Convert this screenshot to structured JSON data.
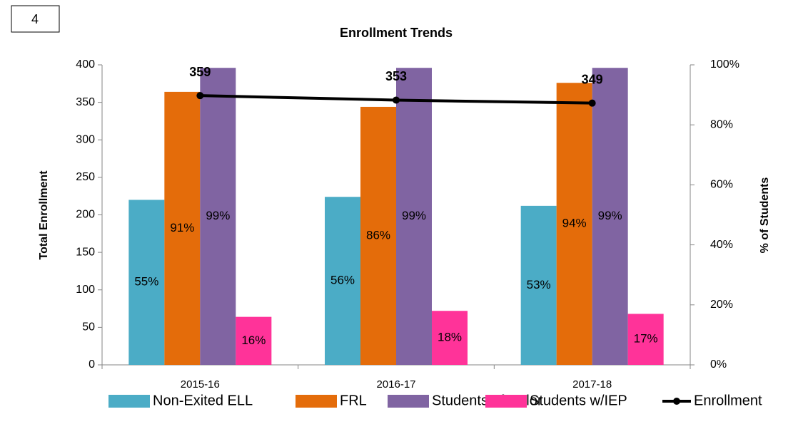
{
  "annotation": "4",
  "chart_data": {
    "type": "bar",
    "title": "Enrollment Trends",
    "y_label": "Total Enrollment",
    "y2_label": "% of Students",
    "categories": [
      "2015-16",
      "2016-17",
      "2017-18"
    ],
    "ylim": [
      0,
      400
    ],
    "yticks": [
      0,
      50,
      100,
      150,
      200,
      250,
      300,
      350,
      400
    ],
    "y2lim": [
      0,
      100
    ],
    "y2ticks": [
      {
        "value": 0,
        "label": "0%"
      },
      {
        "value": 20,
        "label": "20%"
      },
      {
        "value": 40,
        "label": "40%"
      },
      {
        "value": 60,
        "label": "60%"
      },
      {
        "value": 80,
        "label": "80%"
      },
      {
        "value": 100,
        "label": "100%"
      }
    ],
    "series": [
      {
        "name": "Non-Exited ELL",
        "color": "#4bacc6",
        "axis": "y2",
        "values": [
          55,
          56,
          53
        ],
        "value_labels": [
          "55%",
          "56%",
          "53%"
        ]
      },
      {
        "name": "FRL",
        "color": "#e46c0a",
        "axis": "y2",
        "values": [
          91,
          86,
          94
        ],
        "value_labels": [
          "91%",
          "86%",
          "94%"
        ]
      },
      {
        "name": "Students of Color",
        "color": "#8064a2",
        "axis": "y2",
        "values": [
          99,
          99,
          99
        ],
        "value_labels": [
          "99%",
          "99%",
          "99%"
        ]
      },
      {
        "name": "Students w/IEP",
        "color": "#ff3399",
        "axis": "y2",
        "values": [
          16,
          18,
          17
        ],
        "value_labels": [
          "16%",
          "18%",
          "17%"
        ]
      },
      {
        "name": "Enrollment",
        "color": "#000000",
        "type": "line",
        "axis": "y",
        "values": [
          359,
          353,
          349
        ]
      }
    ]
  }
}
